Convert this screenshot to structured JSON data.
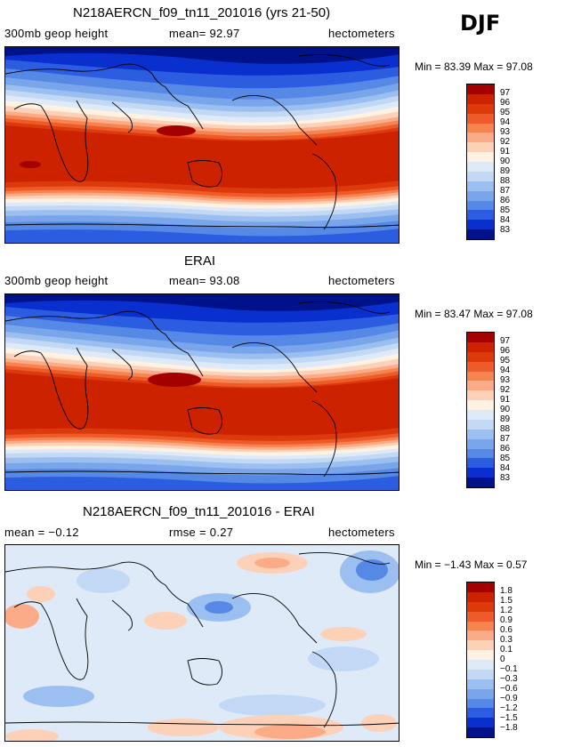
{
  "season": "DJF",
  "chart_data": [
    {
      "type": "heatmap",
      "title": "N218AERCN_f09_tn11_201016 (yrs 21-50)",
      "left_label": "300mb geop height",
      "center_label": "mean=  92.97",
      "right_label": "hectometers",
      "minmax_label": "Min =  83.39 Max =  97.08",
      "min": 83.39,
      "max": 97.08,
      "mean": 92.97,
      "units": "hectometers",
      "levels": [
        "97",
        "96",
        "95",
        "94",
        "93",
        "92",
        "91",
        "90",
        "89",
        "88",
        "87",
        "86",
        "85",
        "84",
        "83"
      ],
      "colors": [
        "#a50000",
        "#cc2200",
        "#dd3a0c",
        "#ee5a2a",
        "#f6844e",
        "#fcab88",
        "#fdd1b8",
        "#fff2e2",
        "#dfeaf8",
        "#c2d8f4",
        "#9bbff0",
        "#79a6ea",
        "#5688e6",
        "#2c5de0",
        "#0a2fcf",
        "#00128a"
      ]
    },
    {
      "type": "heatmap",
      "title": "ERAI",
      "left_label": "300mb geop height",
      "center_label": "mean=  93.08",
      "right_label": "hectometers",
      "minmax_label": "Min =  83.47 Max =  97.08",
      "min": 83.47,
      "max": 97.08,
      "mean": 93.08,
      "units": "hectometers",
      "levels": [
        "97",
        "96",
        "95",
        "94",
        "93",
        "92",
        "91",
        "90",
        "89",
        "88",
        "87",
        "86",
        "85",
        "84",
        "83"
      ],
      "colors": [
        "#a50000",
        "#cc2200",
        "#dd3a0c",
        "#ee5a2a",
        "#f6844e",
        "#fcab88",
        "#fdd1b8",
        "#fff2e2",
        "#dfeaf8",
        "#c2d8f4",
        "#9bbff0",
        "#79a6ea",
        "#5688e6",
        "#2c5de0",
        "#0a2fcf",
        "#00128a"
      ]
    },
    {
      "type": "heatmap",
      "title": "N218AERCN_f09_tn11_201016 - ERAI",
      "left_label": "mean =  −0.12",
      "center_label": "rmse =   0.27",
      "right_label": "hectometers",
      "minmax_label": "Min =  −1.43 Max =   0.57",
      "min": -1.43,
      "max": 0.57,
      "mean": -0.12,
      "rmse": 0.27,
      "units": "hectometers",
      "levels": [
        "1.8",
        "1.5",
        "1.2",
        "0.9",
        "0.6",
        "0.3",
        "0.1",
        "0",
        "−0.1",
        "−0.3",
        "−0.6",
        "−0.9",
        "−1.2",
        "−1.5",
        "−1.8"
      ],
      "colors": [
        "#a50000",
        "#cc2200",
        "#dd3a0c",
        "#ee5a2a",
        "#f6844e",
        "#fcab88",
        "#fdd1b8",
        "#fff2e2",
        "#dfeaf8",
        "#c2d8f4",
        "#9bbff0",
        "#79a6ea",
        "#5688e6",
        "#2c5de0",
        "#0a2fcf",
        "#00128a"
      ]
    }
  ]
}
